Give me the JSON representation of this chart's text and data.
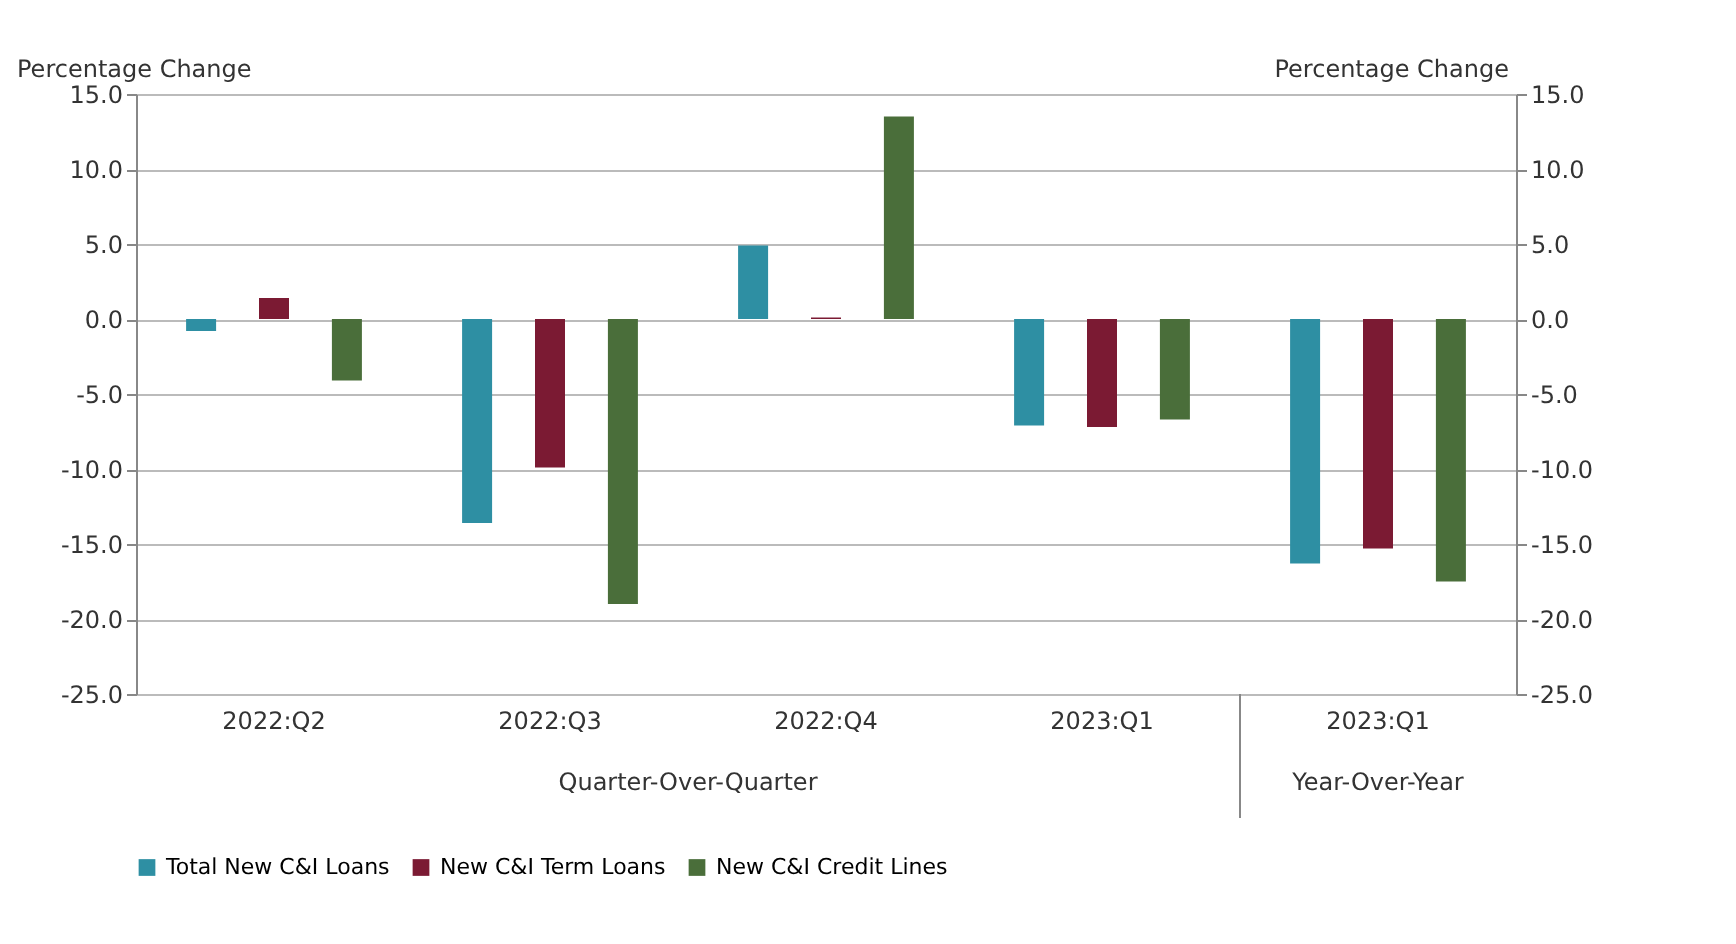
{
  "chart_data": {
    "type": "bar",
    "ylabel": "Percentage Change",
    "y2label": "Percentage Change",
    "categories": [
      "2022:Q2",
      "2022:Q3",
      "2022:Q4",
      "2023:Q1",
      "2023:Q1"
    ],
    "series": [
      {
        "name": "Total New C&I Loans",
        "color": "#2e8fa3",
        "values": [
          -0.8,
          -13.6,
          4.9,
          -7.1,
          -16.3
        ]
      },
      {
        "name": "New C&I Term Loans",
        "color": "#7b1a33",
        "values": [
          1.4,
          -9.9,
          0.1,
          -7.2,
          -15.3
        ]
      },
      {
        "name": "New C&I Credit Lines",
        "color": "#4a6e3a",
        "values": [
          -4.1,
          -19.0,
          13.5,
          -6.7,
          -17.5
        ]
      }
    ],
    "ylim": [
      -25,
      15
    ],
    "yticks": [
      {
        "value": -25,
        "label": "-25.0"
      },
      {
        "value": -20,
        "label": "-20.0"
      },
      {
        "value": -15,
        "label": "-15.0"
      },
      {
        "value": -10,
        "label": "-10.0"
      },
      {
        "value": -5,
        "label": "-5.0"
      },
      {
        "value": 0,
        "label": "0.0"
      },
      {
        "value": 5,
        "label": "5.0"
      },
      {
        "value": 10,
        "label": "10.0"
      },
      {
        "value": 15,
        "label": "15.0"
      }
    ],
    "y2lim": [
      -25,
      15
    ],
    "y2ticks": [
      {
        "value": -25,
        "label": "-25.0"
      },
      {
        "value": -20,
        "label": "-20.0"
      },
      {
        "value": -15,
        "label": "-15.0"
      },
      {
        "value": -10,
        "label": "-10.0"
      },
      {
        "value": -5,
        "label": "-5.0"
      },
      {
        "value": 0,
        "label": "0.0"
      },
      {
        "value": 5,
        "label": "5.0"
      },
      {
        "value": 10,
        "label": "10.0"
      },
      {
        "value": 15,
        "label": "15.0"
      }
    ],
    "annotations": [
      "Quarter-Over-Quarter",
      "Year-Over-Year"
    ],
    "grid": "y",
    "legend": "bottom"
  }
}
